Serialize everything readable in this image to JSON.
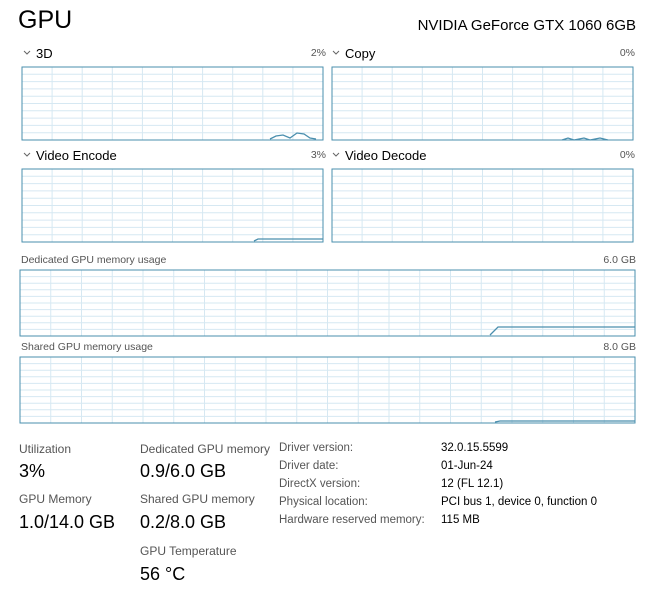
{
  "header": {
    "title": "GPU",
    "device": "NVIDIA GeForce GTX 1060 6GB"
  },
  "engines": [
    {
      "name": "3D",
      "value": "2%"
    },
    {
      "name": "Copy",
      "value": "0%"
    },
    {
      "name": "Video Encode",
      "value": "3%"
    },
    {
      "name": "Video Decode",
      "value": "0%"
    }
  ],
  "memory_graphs": [
    {
      "name": "Dedicated GPU memory usage",
      "value": "6.0 GB"
    },
    {
      "name": "Shared GPU memory usage",
      "value": "8.0 GB"
    }
  ],
  "stats": [
    {
      "label": "Utilization",
      "value": "3%"
    },
    {
      "label": "GPU Memory",
      "value": "1.0/14.0 GB"
    },
    {
      "label": "Dedicated GPU memory",
      "value": "0.9/6.0 GB"
    },
    {
      "label": "Shared GPU memory",
      "value": "0.2/8.0 GB"
    },
    {
      "label": "GPU Temperature",
      "value": "56 °C"
    }
  ],
  "details": [
    {
      "label": "Driver version:",
      "value": "32.0.15.5599"
    },
    {
      "label": "Driver date:",
      "value": "01-Jun-24"
    },
    {
      "label": "DirectX version:",
      "value": "12 (FL 12.1)"
    },
    {
      "label": "Physical location:",
      "value": "PCI bus 1, device 0, function 0"
    },
    {
      "label": "Hardware reserved memory:",
      "value": "115 MB"
    }
  ]
}
